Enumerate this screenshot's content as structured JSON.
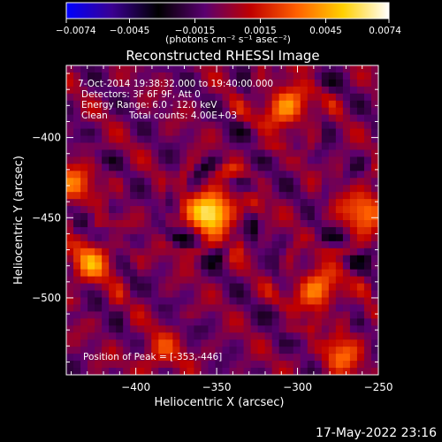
{
  "colorbar": {
    "min": -0.0074,
    "max": 0.0074,
    "ticks": [
      "-0.0074",
      "-0.0045",
      "-0.0015",
      "0.0015",
      "0.0045",
      "0.0074"
    ],
    "tick_values": [
      -0.0074,
      -0.0045,
      -0.0015,
      0.0015,
      0.0045,
      0.0074
    ],
    "label": "(photons cm⁻² s⁻¹ asec⁻²)",
    "colormap_stops": [
      "#0000ff",
      "#3a0090",
      "#000000",
      "#5a0070",
      "#c00000",
      "#ff6000",
      "#ffd000",
      "#ffffff"
    ]
  },
  "chart_data": {
    "type": "heatmap",
    "title": "Reconstructed RHESSI Image",
    "xlabel": "Heliocentric X (arcsec)",
    "ylabel": "Heliocentric Y (arcsec)",
    "xlim": [
      -443,
      -250
    ],
    "ylim": [
      -548,
      -355
    ],
    "x_ticks": [
      -400,
      -350,
      -300,
      -250
    ],
    "y_ticks": [
      -400,
      -450,
      -500
    ],
    "x_tick_labels": [
      "−400",
      "−350",
      "−300",
      "−250"
    ],
    "y_tick_labels": [
      "−400",
      "−450",
      "−500"
    ],
    "annotations": [
      "7-Oct-2014 19:38:32.000 to 19:40:00.000",
      "Detectors: 3F 6F 9F, Att 0",
      "Energy Range: 6.0 - 12.0 keV",
      "Clean",
      "Total counts: 4.00E+03"
    ],
    "peak_label": "Position of Peak = [-353,-446]",
    "peak": [
      -353,
      -446
    ],
    "sources": [
      {
        "x": -353,
        "y": -446,
        "amplitude": 0.0074
      },
      {
        "x": -307,
        "y": -381,
        "amplitude": 0.0048
      },
      {
        "x": -288,
        "y": -495,
        "amplitude": 0.0045
      },
      {
        "x": -258,
        "y": -445,
        "amplitude": 0.0042
      },
      {
        "x": -428,
        "y": -478,
        "amplitude": 0.004
      },
      {
        "x": -440,
        "y": -430,
        "amplitude": 0.0035
      },
      {
        "x": -272,
        "y": -535,
        "amplitude": 0.0032
      },
      {
        "x": -385,
        "y": -535,
        "amplitude": 0.0025
      }
    ]
  },
  "footer": {
    "timestamp": "17-May-2022 23:16"
  }
}
